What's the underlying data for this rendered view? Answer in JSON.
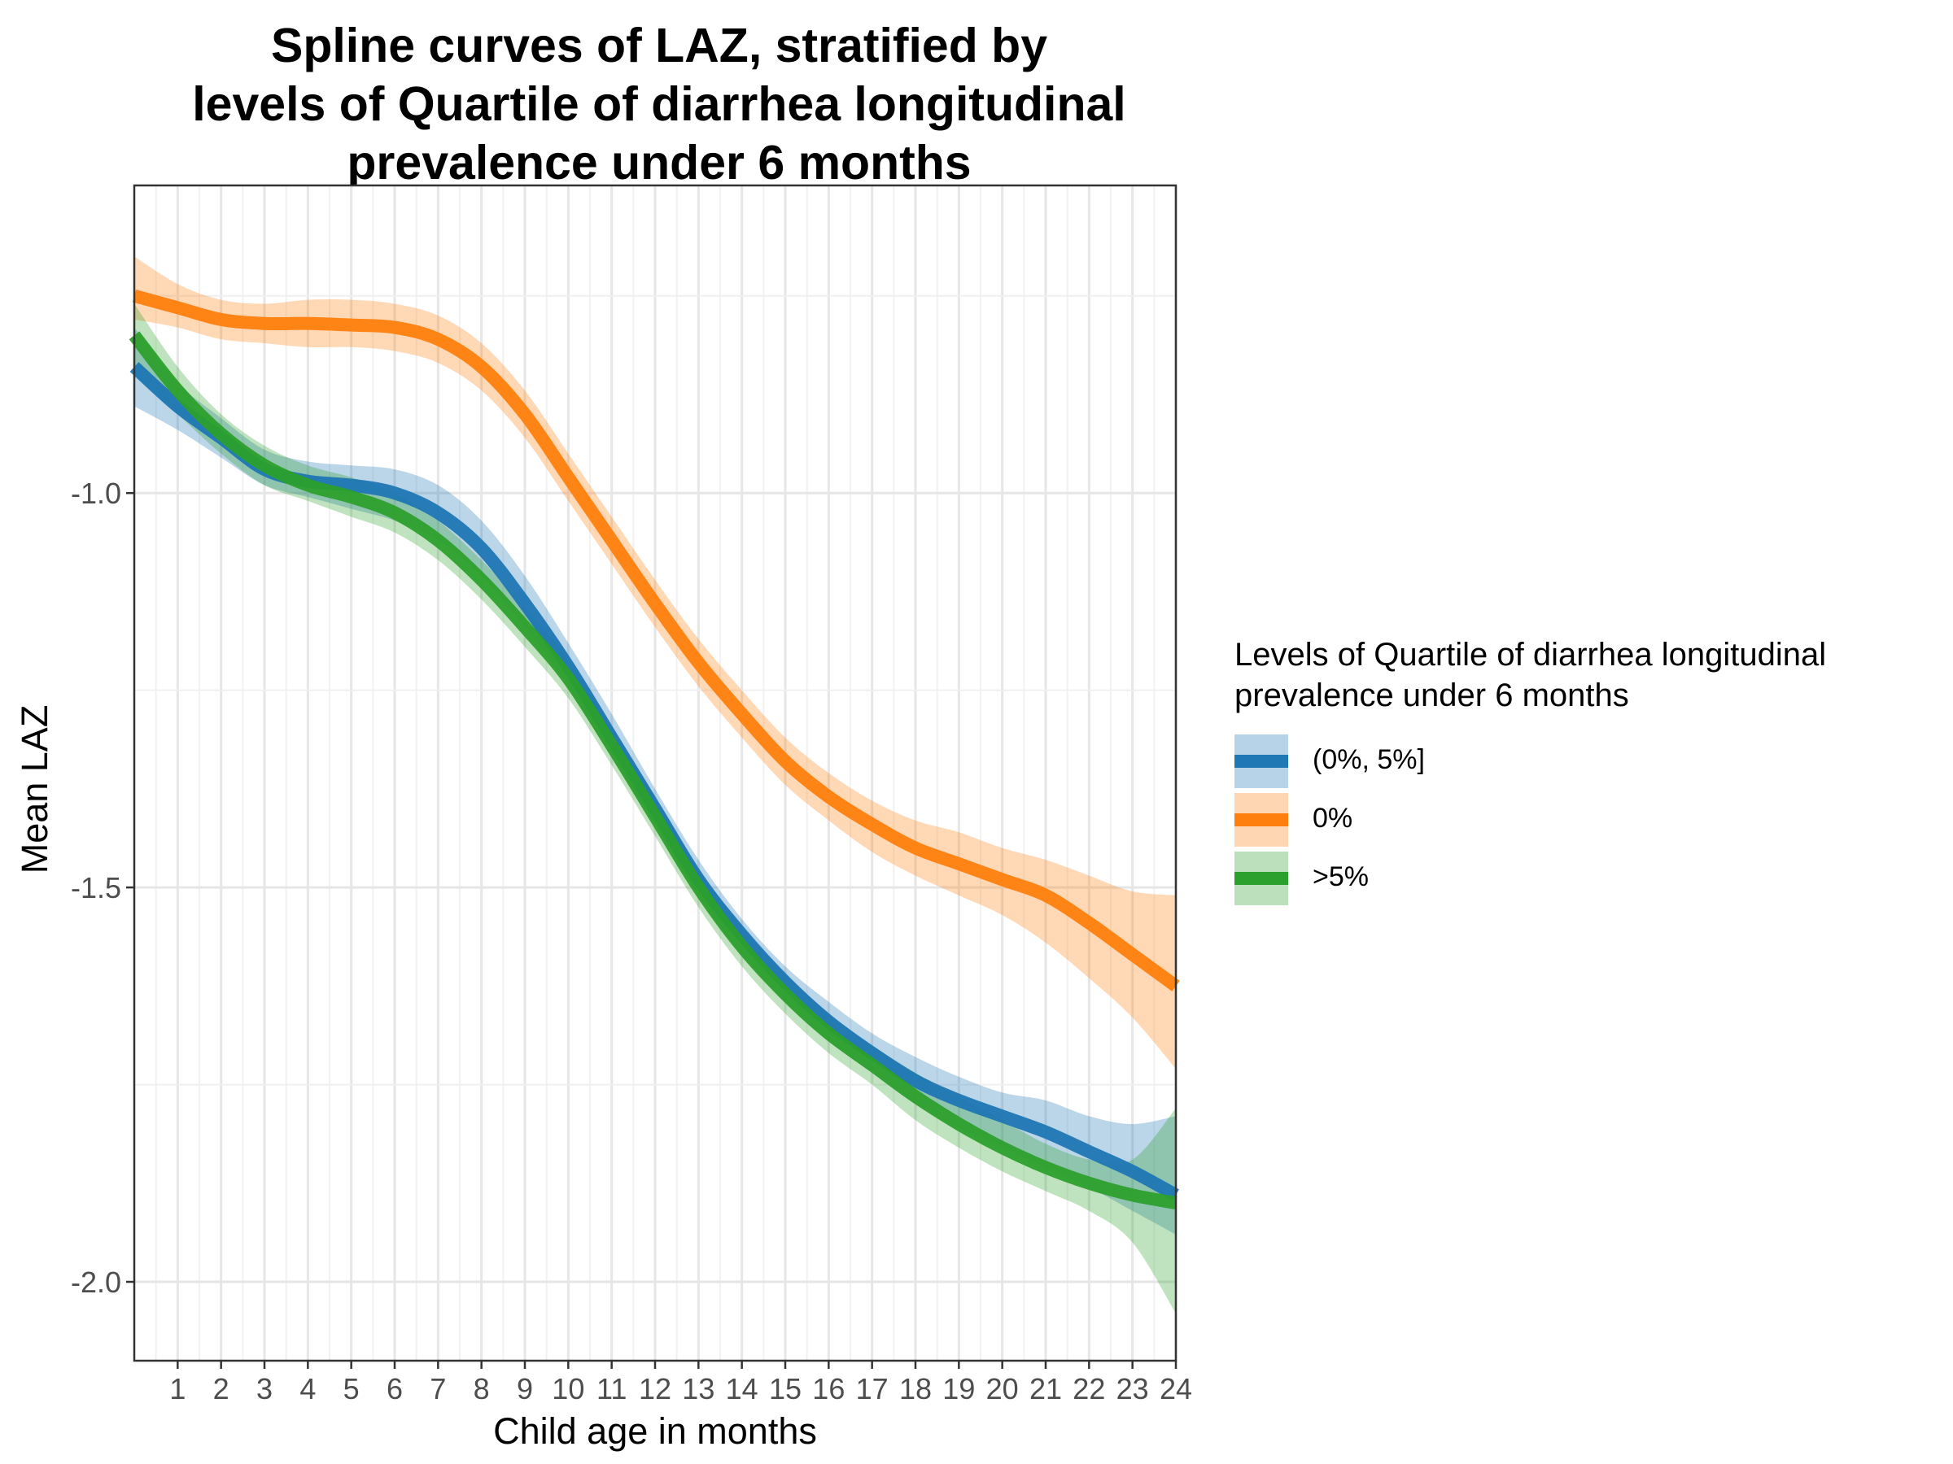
{
  "title_lines": [
    "Spline curves of LAZ, stratified by",
    "levels of Quartile of diarrhea longitudinal",
    "prevalence under 6 months"
  ],
  "legend": {
    "title_lines": [
      "Levels of Quartile of diarrhea longitudinal",
      "prevalence under 6 months"
    ],
    "items": [
      {
        "label": "(0%, 5%]",
        "color": "#1f77b4"
      },
      {
        "label": "0%",
        "color": "#ff7f0e"
      },
      {
        "label": ">5%",
        "color": "#2ca02c"
      }
    ]
  },
  "chart_data": {
    "type": "line",
    "title": "Spline curves of LAZ, stratified by levels of Quartile of diarrhea longitudinal prevalence under 6 months",
    "xlabel": "Child age in months",
    "ylabel": "Mean LAZ",
    "xlim": [
      0,
      24
    ],
    "ylim": [
      -2.1,
      -0.61
    ],
    "x_ticks": [
      1,
      2,
      3,
      4,
      5,
      6,
      7,
      8,
      9,
      10,
      11,
      12,
      13,
      14,
      15,
      16,
      17,
      18,
      19,
      20,
      21,
      22,
      23,
      24
    ],
    "y_ticks": [
      -1.0,
      -1.5,
      -2.0
    ],
    "y_tick_labels": [
      "-1.0",
      "-1.5",
      "-2.0"
    ],
    "grid": true,
    "legend_position": "right",
    "x": [
      0,
      1,
      2,
      3,
      4,
      5,
      6,
      7,
      8,
      9,
      10,
      11,
      12,
      13,
      14,
      15,
      16,
      17,
      18,
      19,
      20,
      21,
      22,
      23,
      24
    ],
    "series": [
      {
        "name": "(0%, 5%]",
        "color": "#1f77b4",
        "values": [
          -0.84,
          -0.89,
          -0.93,
          -0.97,
          -0.985,
          -0.99,
          -1.0,
          -1.025,
          -1.07,
          -1.14,
          -1.22,
          -1.31,
          -1.4,
          -1.49,
          -1.56,
          -1.62,
          -1.67,
          -1.71,
          -1.745,
          -1.77,
          -1.79,
          -1.81,
          -1.835,
          -1.86,
          -1.89
        ],
        "lower": [
          -0.89,
          -0.92,
          -0.955,
          -0.99,
          -1.005,
          -1.02,
          -1.035,
          -1.06,
          -1.105,
          -1.17,
          -1.245,
          -1.335,
          -1.42,
          -1.51,
          -1.585,
          -1.645,
          -1.695,
          -1.735,
          -1.775,
          -1.805,
          -1.83,
          -1.855,
          -1.88,
          -1.91,
          -1.94
        ],
        "upper": [
          -0.79,
          -0.86,
          -0.905,
          -0.945,
          -0.96,
          -0.965,
          -0.97,
          -0.99,
          -1.035,
          -1.105,
          -1.19,
          -1.28,
          -1.375,
          -1.465,
          -1.54,
          -1.6,
          -1.645,
          -1.685,
          -1.715,
          -1.74,
          -1.76,
          -1.77,
          -1.79,
          -1.8,
          -1.79
        ]
      },
      {
        "name": "0%",
        "color": "#ff7f0e",
        "values": [
          -0.75,
          -0.765,
          -0.78,
          -0.785,
          -0.785,
          -0.787,
          -0.79,
          -0.805,
          -0.84,
          -0.9,
          -0.98,
          -1.06,
          -1.14,
          -1.215,
          -1.28,
          -1.34,
          -1.385,
          -1.42,
          -1.45,
          -1.47,
          -1.49,
          -1.51,
          -1.545,
          -1.585,
          -1.625
        ],
        "lower": [
          -0.78,
          -0.79,
          -0.805,
          -0.81,
          -0.815,
          -0.815,
          -0.82,
          -0.835,
          -0.87,
          -0.93,
          -1.01,
          -1.09,
          -1.17,
          -1.245,
          -1.31,
          -1.37,
          -1.415,
          -1.455,
          -1.485,
          -1.51,
          -1.535,
          -1.57,
          -1.615,
          -1.665,
          -1.73
        ],
        "upper": [
          -0.7,
          -0.735,
          -0.755,
          -0.76,
          -0.755,
          -0.755,
          -0.76,
          -0.775,
          -0.81,
          -0.87,
          -0.95,
          -1.03,
          -1.11,
          -1.185,
          -1.25,
          -1.31,
          -1.355,
          -1.39,
          -1.415,
          -1.43,
          -1.45,
          -1.465,
          -1.485,
          -1.505,
          -1.51
        ]
      },
      {
        "name": ">5%",
        "color": "#2ca02c",
        "values": [
          -0.8,
          -0.87,
          -0.925,
          -0.965,
          -0.99,
          -1.005,
          -1.025,
          -1.06,
          -1.11,
          -1.17,
          -1.235,
          -1.32,
          -1.41,
          -1.5,
          -1.575,
          -1.635,
          -1.685,
          -1.725,
          -1.765,
          -1.8,
          -1.83,
          -1.855,
          -1.875,
          -1.89,
          -1.9
        ],
        "lower": [
          -0.85,
          -0.9,
          -0.95,
          -0.99,
          -1.01,
          -1.03,
          -1.05,
          -1.085,
          -1.135,
          -1.195,
          -1.26,
          -1.345,
          -1.435,
          -1.525,
          -1.6,
          -1.66,
          -1.71,
          -1.75,
          -1.795,
          -1.83,
          -1.86,
          -1.885,
          -1.91,
          -1.95,
          -2.04
        ],
        "upper": [
          -0.76,
          -0.84,
          -0.9,
          -0.94,
          -0.965,
          -0.98,
          -1.0,
          -1.035,
          -1.085,
          -1.145,
          -1.21,
          -1.295,
          -1.385,
          -1.475,
          -1.55,
          -1.61,
          -1.66,
          -1.7,
          -1.735,
          -1.765,
          -1.795,
          -1.825,
          -1.845,
          -1.845,
          -1.78
        ]
      }
    ]
  }
}
